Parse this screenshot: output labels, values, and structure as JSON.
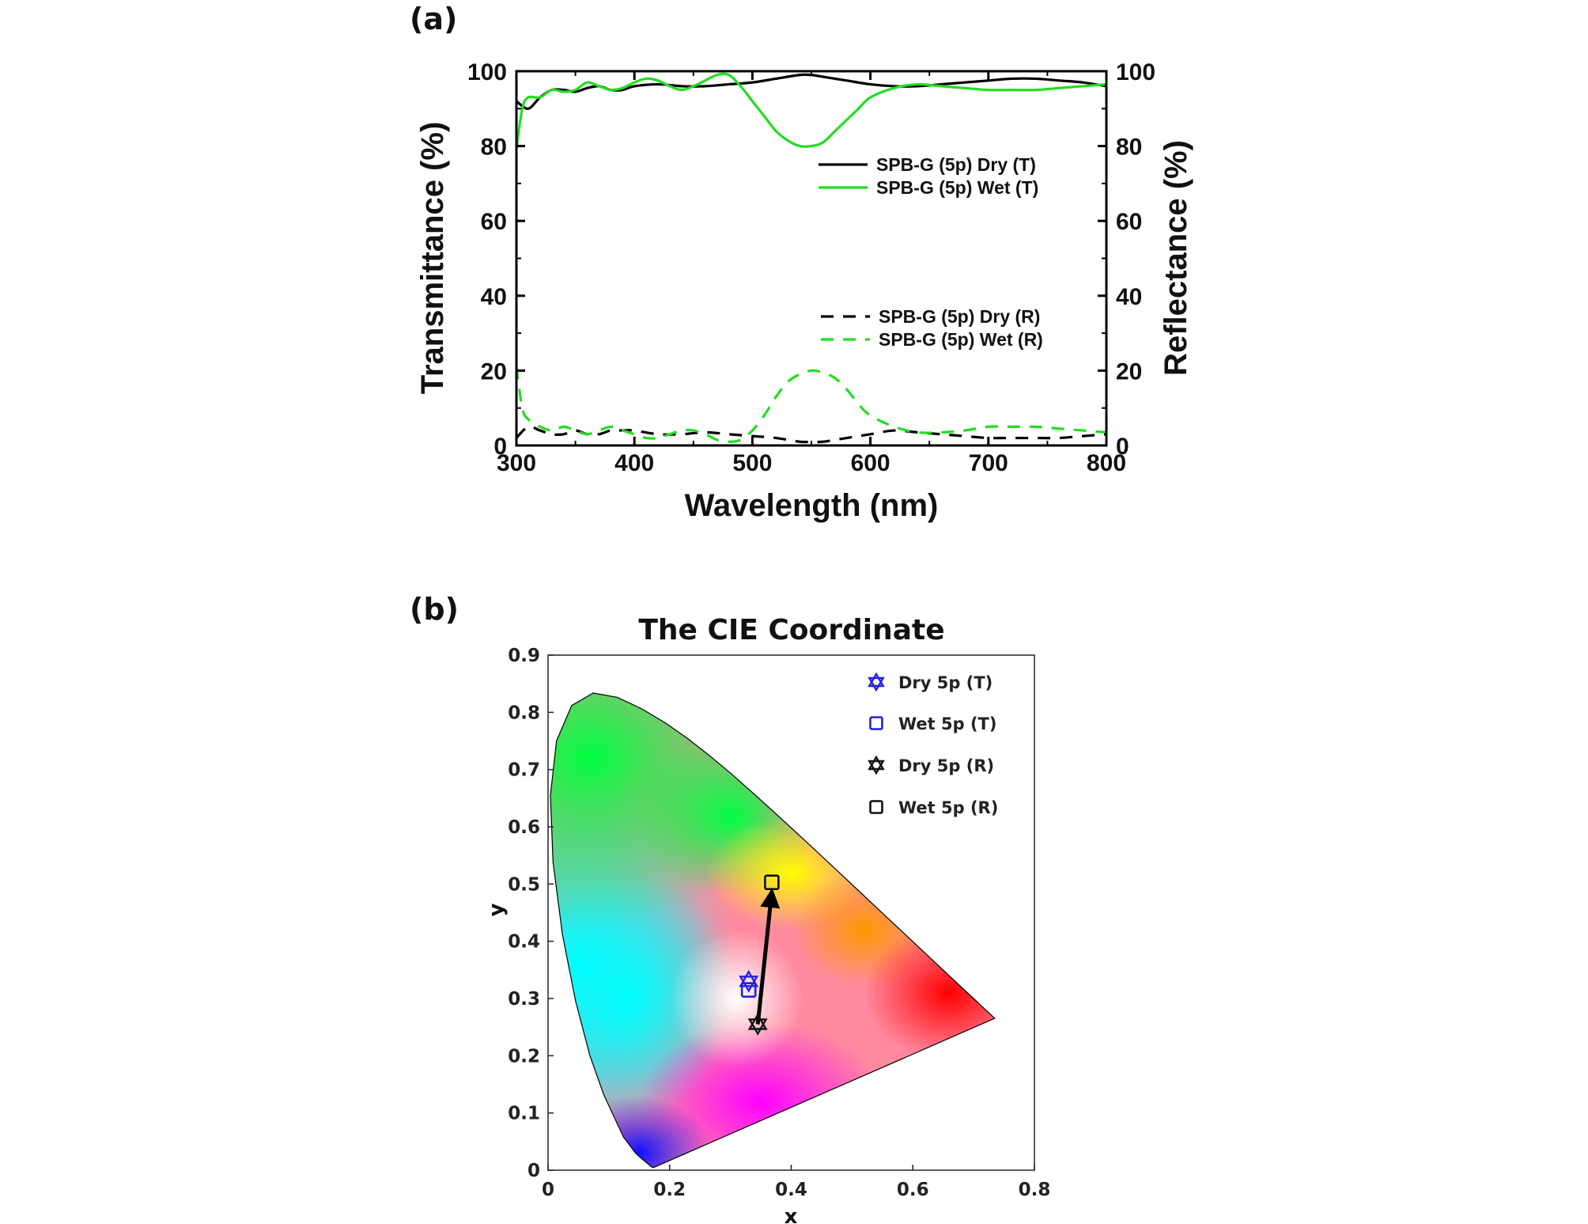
{
  "chart_data": [
    {
      "type": "line",
      "panel_label": "(a)",
      "title": "",
      "xlabel": "Wavelength (nm)",
      "ylabel": "Transmittance (%)",
      "y2label": "Reflectance (%)",
      "xlim": [
        300,
        800
      ],
      "ylim": [
        0,
        100
      ],
      "y2lim": [
        0,
        100
      ],
      "x_ticks": [
        "300",
        "400",
        "500",
        "600",
        "700",
        "800"
      ],
      "y_ticks": [
        "0",
        "20",
        "40",
        "60",
        "80",
        "100"
      ],
      "y2_ticks": [
        "0",
        "20",
        "40",
        "60",
        "80",
        "100"
      ],
      "grid": false,
      "legend_placement": "right",
      "series": [
        {
          "name": "SPB-G (5p) Dry (T)",
          "color": "#000000",
          "dash": "solid",
          "x": [
            300,
            310,
            320,
            330,
            340,
            350,
            360,
            370,
            380,
            390,
            400,
            420,
            440,
            460,
            480,
            500,
            520,
            540,
            550,
            560,
            580,
            600,
            620,
            640,
            660,
            680,
            700,
            720,
            740,
            760,
            780,
            800
          ],
          "y": [
            92,
            90,
            93,
            95,
            95,
            94.5,
            95.5,
            96,
            95,
            95,
            96,
            96.5,
            96,
            96,
            96.5,
            97,
            98,
            99,
            99,
            98.5,
            97.5,
            96.5,
            96,
            96,
            96.5,
            97,
            97.5,
            98,
            98,
            97.5,
            97,
            96
          ]
        },
        {
          "name": "SPB-G (5p) Wet (T)",
          "color": "#22dd22",
          "dash": "solid",
          "x": [
            300,
            305,
            310,
            320,
            330,
            340,
            350,
            360,
            370,
            380,
            390,
            400,
            410,
            420,
            430,
            440,
            450,
            460,
            470,
            480,
            490,
            500,
            510,
            520,
            530,
            540,
            550,
            560,
            570,
            580,
            590,
            600,
            620,
            640,
            660,
            680,
            700,
            720,
            740,
            760,
            780,
            800
          ],
          "y": [
            79,
            90,
            93,
            93,
            95,
            94.5,
            95,
            97,
            96,
            95,
            95.5,
            97,
            98,
            97.5,
            96,
            95,
            96,
            97.5,
            99,
            99,
            96,
            92,
            88,
            84,
            81.5,
            80,
            80,
            81,
            84,
            87,
            90,
            93,
            95.5,
            96.5,
            96,
            95.5,
            95,
            95,
            95,
            95.5,
            96,
            96.5
          ]
        },
        {
          "name": "SPB-G (5p) Dry (R)",
          "color": "#000000",
          "dash": "dashed",
          "x": [
            300,
            310,
            320,
            330,
            340,
            350,
            360,
            370,
            380,
            390,
            400,
            420,
            440,
            460,
            480,
            500,
            520,
            540,
            550,
            560,
            580,
            600,
            620,
            640,
            660,
            680,
            700,
            720,
            740,
            760,
            780,
            800
          ],
          "y": [
            2,
            5,
            4,
            3,
            3,
            4,
            3,
            3,
            4,
            4,
            4,
            3,
            3,
            3.5,
            3,
            2.5,
            2,
            1,
            1,
            1,
            2,
            3,
            4,
            3.5,
            3,
            2.5,
            2,
            2,
            2,
            2,
            2.5,
            3
          ]
        },
        {
          "name": "SPB-G (5p) Wet (R)",
          "color": "#22dd22",
          "dash": "dashed",
          "x": [
            300,
            305,
            310,
            320,
            330,
            340,
            350,
            360,
            370,
            380,
            390,
            400,
            410,
            420,
            430,
            440,
            450,
            460,
            470,
            480,
            490,
            500,
            510,
            520,
            530,
            540,
            550,
            560,
            570,
            580,
            590,
            600,
            620,
            640,
            660,
            680,
            700,
            720,
            740,
            760,
            780,
            800
          ],
          "y": [
            21,
            10,
            7,
            5,
            4,
            5,
            4,
            3,
            4,
            5,
            4,
            3,
            2,
            2,
            3,
            4,
            4,
            3,
            1.5,
            1,
            1.5,
            4,
            8,
            13,
            17,
            19,
            20,
            19.5,
            18,
            15,
            11,
            8,
            5,
            3.5,
            3.5,
            4,
            5,
            5,
            5,
            4.5,
            4,
            3.5
          ]
        }
      ]
    },
    {
      "type": "scatter",
      "panel_label": "(b)",
      "title": "The CIE Coordinate",
      "xlabel": "x",
      "ylabel": "y",
      "xlim": [
        0,
        0.8
      ],
      "ylim": [
        0,
        0.9
      ],
      "x_ticks": [
        "0",
        "0.2",
        "0.4",
        "0.6",
        "0.8"
      ],
      "y_ticks": [
        "0",
        "0.1",
        "0.2",
        "0.3",
        "0.4",
        "0.5",
        "0.6",
        "0.7",
        "0.8",
        "0.9"
      ],
      "grid": false,
      "legend_placement": "top-right",
      "background": "CIE 1931 chromaticity diagram",
      "series": [
        {
          "name": "Dry 5p (T)",
          "marker": "hexagram",
          "color": "#2222dd",
          "x": [
            0.33
          ],
          "y": [
            0.33
          ]
        },
        {
          "name": "Wet 5p (T)",
          "marker": "square",
          "color": "#2222dd",
          "x": [
            0.33
          ],
          "y": [
            0.315
          ]
        },
        {
          "name": "Dry 5p (R)",
          "marker": "hexagram",
          "color": "#111111",
          "x": [
            0.345
          ],
          "y": [
            0.255
          ]
        },
        {
          "name": "Wet 5p (R)",
          "marker": "square",
          "color": "#111111",
          "x": [
            0.368
          ],
          "y": [
            0.503
          ]
        }
      ],
      "arrow": {
        "from": [
          0.345,
          0.255
        ],
        "to": [
          0.368,
          0.503
        ],
        "color": "#000000"
      }
    }
  ]
}
